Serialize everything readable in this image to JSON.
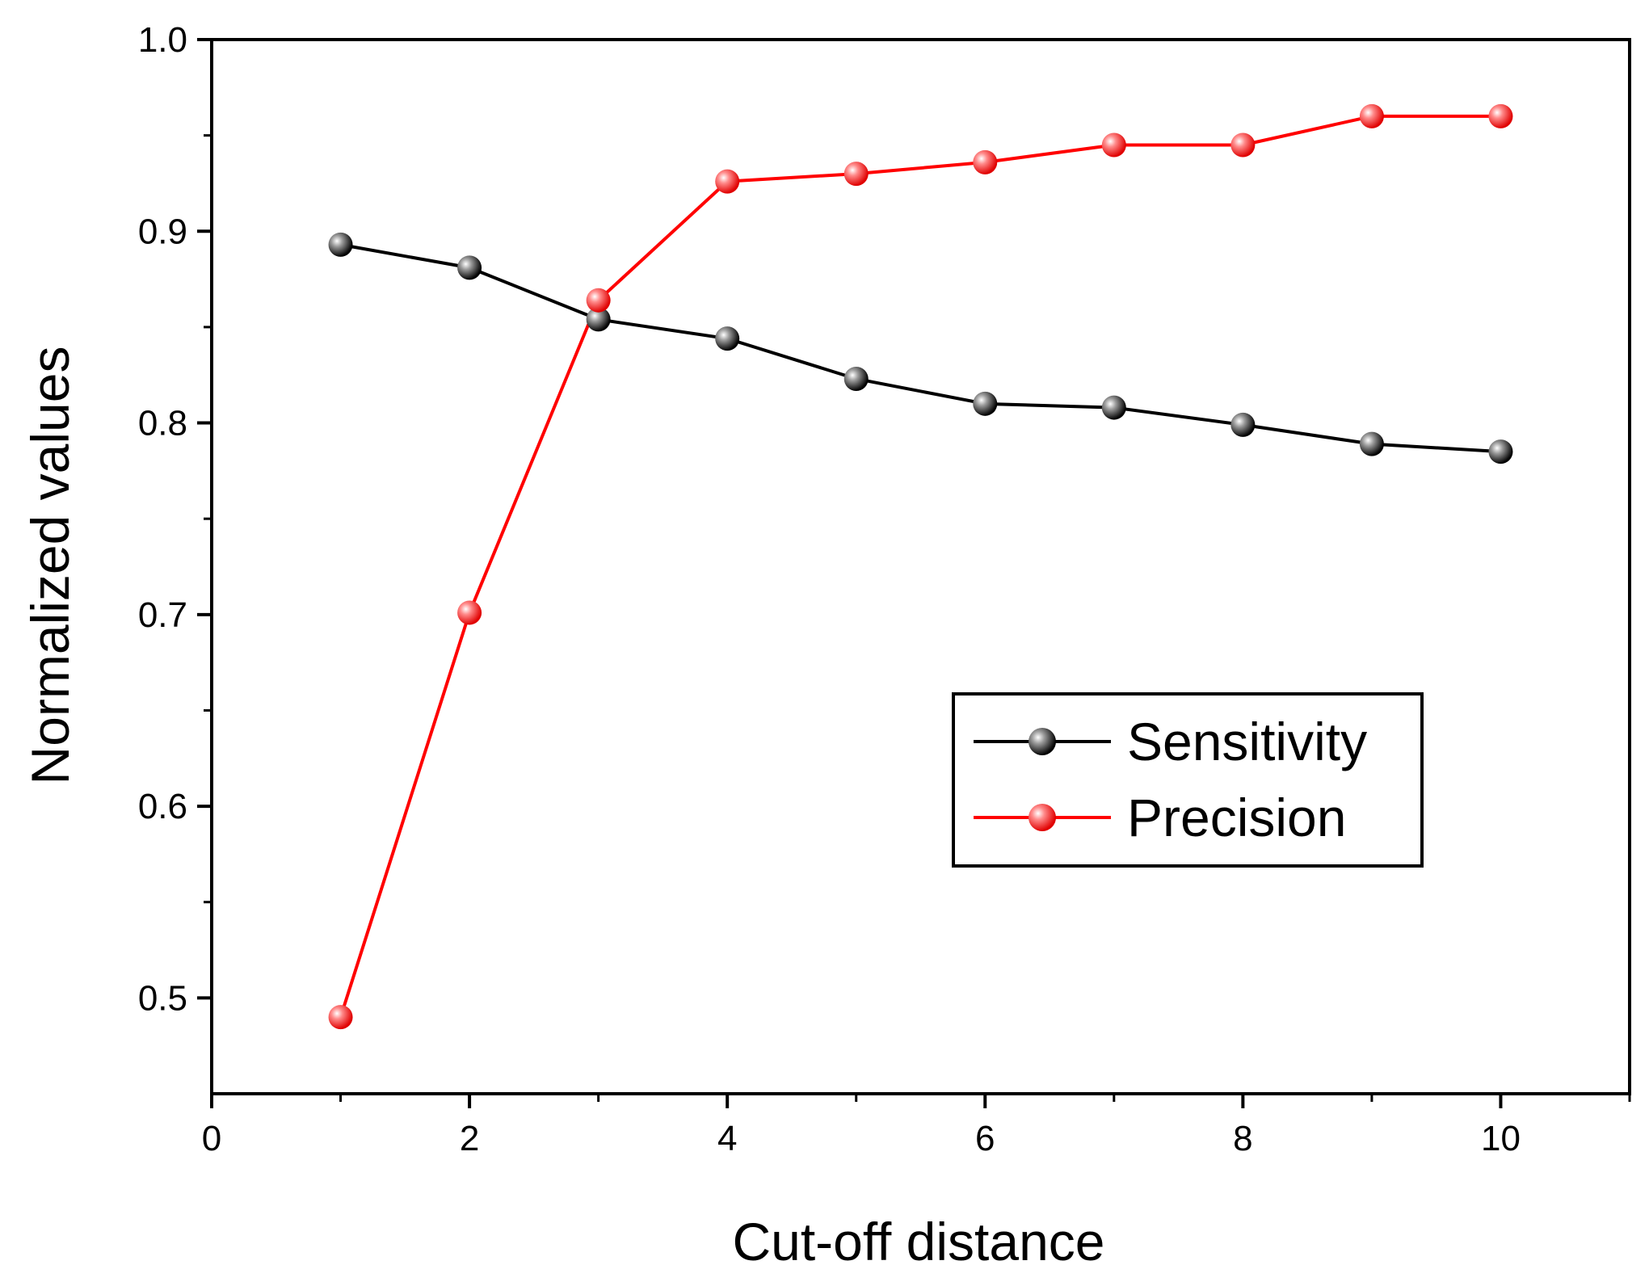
{
  "chart_data": {
    "type": "line",
    "title": "",
    "xlabel": "Cut-off distance",
    "ylabel": "Normalized values",
    "xlim": [
      0,
      11
    ],
    "ylim": [
      0.45,
      1.0
    ],
    "x_ticks": [
      0,
      2,
      4,
      6,
      8,
      10
    ],
    "x_tick_labels": [
      "0",
      "2",
      "4",
      "6",
      "8",
      "10"
    ],
    "y_ticks": [
      0.5,
      0.6,
      0.7,
      0.8,
      0.9,
      1.0
    ],
    "y_tick_labels": [
      "0.5",
      "0.6",
      "0.7",
      "0.8",
      "0.9",
      "1.0"
    ],
    "grid": false,
    "legend_position": "center-right",
    "x": [
      1,
      2,
      3,
      4,
      5,
      6,
      7,
      8,
      9,
      10
    ],
    "series": [
      {
        "name": "Sensitivity",
        "color": "#000000",
        "values": [
          0.893,
          0.881,
          0.854,
          0.844,
          0.823,
          0.81,
          0.808,
          0.799,
          0.789,
          0.785
        ]
      },
      {
        "name": "Precision",
        "color": "#ff0000",
        "values": [
          0.49,
          0.701,
          0.864,
          0.926,
          0.93,
          0.936,
          0.945,
          0.945,
          0.96,
          0.96
        ]
      }
    ]
  }
}
